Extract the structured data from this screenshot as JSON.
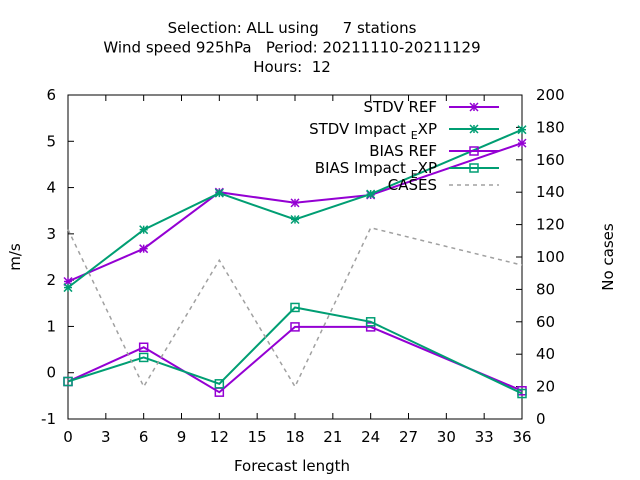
{
  "chart_data": {
    "type": "line",
    "title_lines": [
      "Selection: ALL using     7 stations",
      "Wind speed 925hPa   Period: 20211110-20211129",
      "Hours:  12"
    ],
    "xlabel": "Forecast length",
    "ylabel": "m/s",
    "y2label": "No cases",
    "x_ticks": [
      0,
      3,
      6,
      9,
      12,
      15,
      18,
      21,
      24,
      27,
      30,
      33,
      36
    ],
    "y_ticks": [
      -1,
      0,
      1,
      2,
      3,
      4,
      5,
      6
    ],
    "y2_ticks": [
      0,
      20,
      40,
      60,
      80,
      100,
      120,
      140,
      160,
      180,
      200
    ],
    "xlim": [
      0,
      36
    ],
    "ylim": [
      -1,
      6
    ],
    "y2lim": [
      0,
      200
    ],
    "grid": false,
    "legend_position": "top-right",
    "series": [
      {
        "name": "STDV REF",
        "axis": "y",
        "color": "#9400d3",
        "marker": "star",
        "dash": false,
        "x": [
          0,
          6,
          12,
          18,
          24,
          36
        ],
        "values": [
          1.97,
          2.68,
          3.9,
          3.67,
          3.84,
          4.96
        ]
      },
      {
        "name": "STDV Impact_EXP",
        "name_main": "STDV Impact",
        "name_sub": "E",
        "name_tail": "XP",
        "axis": "y",
        "color": "#009e73",
        "marker": "star",
        "dash": false,
        "x": [
          0,
          6,
          12,
          18,
          24,
          36
        ],
        "values": [
          1.84,
          3.09,
          3.88,
          3.31,
          3.86,
          5.25
        ]
      },
      {
        "name": "BIAS REF",
        "axis": "y",
        "color": "#9400d3",
        "marker": "square",
        "dash": false,
        "x": [
          0,
          6,
          12,
          18,
          24,
          36
        ],
        "values": [
          -0.19,
          0.55,
          -0.42,
          0.99,
          0.99,
          -0.39
        ]
      },
      {
        "name": "BIAS Impact_EXP",
        "name_main": "BIAS Impact",
        "name_sub": "E",
        "name_tail": "XP",
        "axis": "y",
        "color": "#009e73",
        "marker": "square",
        "dash": false,
        "x": [
          0,
          6,
          12,
          18,
          24,
          36
        ],
        "values": [
          -0.19,
          0.33,
          -0.24,
          1.41,
          1.1,
          -0.45
        ]
      },
      {
        "name": "CASES",
        "axis": "y2",
        "color": "#a0a0a0",
        "marker": "none",
        "dash": true,
        "x": [
          0,
          6,
          12,
          18,
          24,
          36
        ],
        "values": [
          117,
          20,
          98,
          20,
          118,
          95
        ]
      }
    ]
  }
}
